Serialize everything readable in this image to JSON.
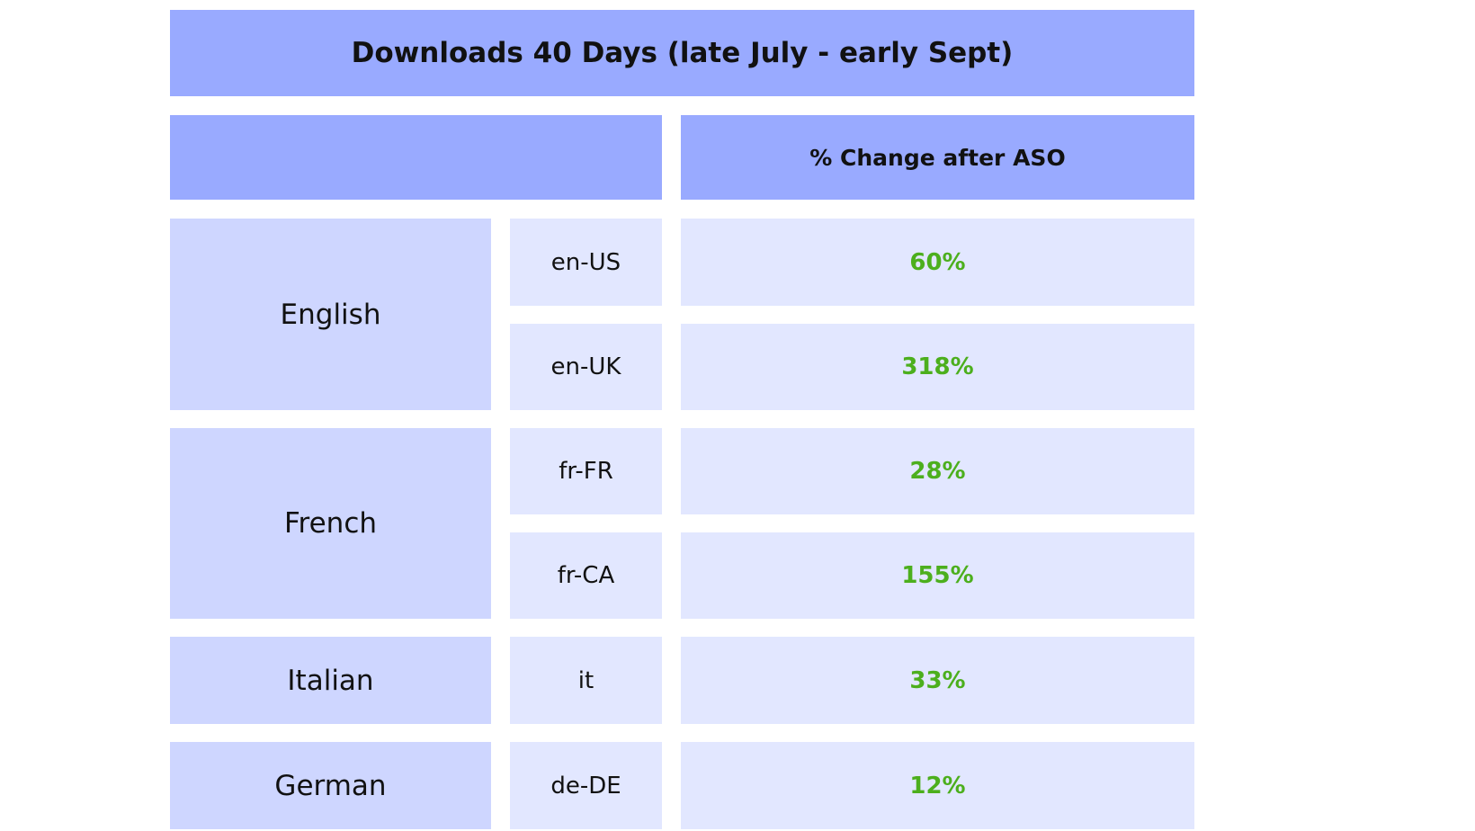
{
  "chart_data": {
    "type": "table",
    "title": "Downloads 40 Days (late July - early Sept)",
    "column_header": "% Change after ASO",
    "value_color": "#4caf1d",
    "groups": [
      {
        "language": "English",
        "rows": [
          {
            "locale": "en-US",
            "change": "60%",
            "value": 60
          },
          {
            "locale": "en-UK",
            "change": "318%",
            "value": 318
          }
        ]
      },
      {
        "language": "French",
        "rows": [
          {
            "locale": "fr-FR",
            "change": "28%",
            "value": 28
          },
          {
            "locale": "fr-CA",
            "change": "155%",
            "value": 155
          }
        ]
      },
      {
        "language": "Italian",
        "rows": [
          {
            "locale": "it",
            "change": "33%",
            "value": 33
          }
        ]
      },
      {
        "language": "German",
        "rows": [
          {
            "locale": "de-DE",
            "change": "12%",
            "value": 12
          }
        ]
      }
    ]
  }
}
